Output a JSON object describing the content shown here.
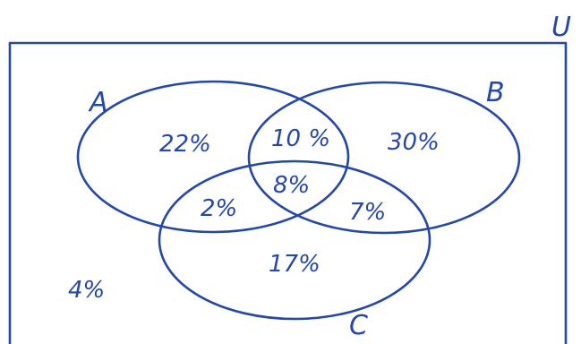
{
  "colors": {
    "ink": "#2447a8",
    "background": "#ffffff"
  },
  "universe": {
    "label": "U"
  },
  "sets": {
    "a": {
      "label": "A"
    },
    "b": {
      "label": "B"
    },
    "c": {
      "label": "C"
    }
  },
  "regions": {
    "a_only": "22%",
    "a_and_b_only": "10 %",
    "b_only": "30%",
    "a_b_c": "8%",
    "a_and_c_only": "2%",
    "b_and_c_only": "7%",
    "c_only": "17%",
    "outside": "4%"
  }
}
